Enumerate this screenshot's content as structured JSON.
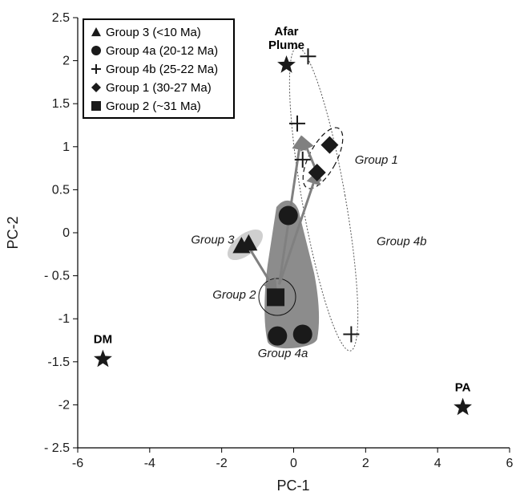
{
  "chart_data": {
    "type": "scatter",
    "xlabel": "PC-1",
    "ylabel": "PC-2",
    "xlim": [
      -6,
      6
    ],
    "ylim": [
      -2.5,
      2.5
    ],
    "xticks": [
      -6,
      -4,
      -2,
      0,
      2,
      4,
      6
    ],
    "xtick_labels": [
      "-6",
      "-4",
      "-2",
      "0",
      "2",
      "4",
      "6"
    ],
    "yticks": [
      2.5,
      2,
      1.5,
      1,
      0.5,
      0,
      -0.5,
      -1,
      -1.5,
      -2,
      -2.5
    ],
    "ytick_labels": [
      "2.5",
      "2",
      "1.5",
      "1",
      "0.5",
      "0",
      "- 0.5",
      "-1",
      "-1.5",
      "-2",
      "- 2.5"
    ],
    "grid": false,
    "legend_position": "top-left",
    "legend": [
      {
        "marker": "triangle",
        "label": "Group 3 (<10 Ma)"
      },
      {
        "marker": "circle",
        "label": "Group 4a (20-12 Ma)"
      },
      {
        "marker": "plus",
        "label": "Group 4b (25-22 Ma)"
      },
      {
        "marker": "diamond",
        "label": "Group 1 (30-27 Ma)"
      },
      {
        "marker": "square",
        "label": "Group 2 (~31 Ma)"
      }
    ],
    "series": [
      {
        "name": "Group 3 (<10 Ma)",
        "marker": "triangle",
        "points": [
          [
            -1.45,
            -0.15
          ],
          [
            -1.25,
            -0.12
          ]
        ]
      },
      {
        "name": "Group 4a (20-12 Ma)",
        "marker": "circle",
        "points": [
          [
            -0.15,
            0.2
          ],
          [
            -0.45,
            -1.2
          ],
          [
            0.25,
            -1.18
          ]
        ]
      },
      {
        "name": "Group 4b (25-22 Ma)",
        "marker": "plus",
        "points": [
          [
            0.4,
            2.05
          ],
          [
            0.1,
            1.27
          ],
          [
            0.25,
            0.85
          ],
          [
            1.6,
            -1.18
          ]
        ]
      },
      {
        "name": "Group 1 (30-27 Ma)",
        "marker": "diamond",
        "points": [
          [
            1.0,
            1.02
          ],
          [
            0.65,
            0.7
          ]
        ]
      },
      {
        "name": "Group 2 (~31 Ma)",
        "marker": "square",
        "points": [
          [
            -0.5,
            -0.75
          ]
        ]
      }
    ],
    "endmembers": [
      {
        "label": "Afar Plume",
        "lines": [
          "Afar",
          "Plume"
        ],
        "x": -0.2,
        "y": 1.95
      },
      {
        "label": "DM",
        "lines": [
          "DM"
        ],
        "x": -5.3,
        "y": -1.47
      },
      {
        "label": "PA",
        "lines": [
          "PA"
        ],
        "x": 4.7,
        "y": -2.03
      }
    ],
    "group_labels": [
      {
        "text": "Group 1",
        "x": 2.3,
        "y": 0.85
      },
      {
        "text": "Group 3",
        "x": -2.25,
        "y": -0.08
      },
      {
        "text": "Group 4b",
        "x": 3.0,
        "y": -0.1
      },
      {
        "text": "Group 2",
        "x": -1.65,
        "y": -0.72
      },
      {
        "text": "Group 4a",
        "x": -0.3,
        "y": -1.4
      }
    ],
    "arrows": [
      {
        "from": [
          -1.2,
          -0.2
        ],
        "to": [
          -0.5,
          -0.68
        ]
      },
      {
        "from": [
          -0.4,
          -0.6
        ],
        "to": [
          0.2,
          1.1
        ]
      },
      {
        "from": [
          -0.4,
          -0.6
        ],
        "to": [
          0.65,
          0.7
        ]
      },
      {
        "from": [
          0.75,
          0.6
        ],
        "to": [
          0.25,
          1.1
        ]
      }
    ],
    "colors": {
      "marker": "#1a1a1a",
      "group4a_field": "#8c8c8c",
      "group3_field": "#cfcfcf",
      "arrow": "#808080"
    }
  }
}
